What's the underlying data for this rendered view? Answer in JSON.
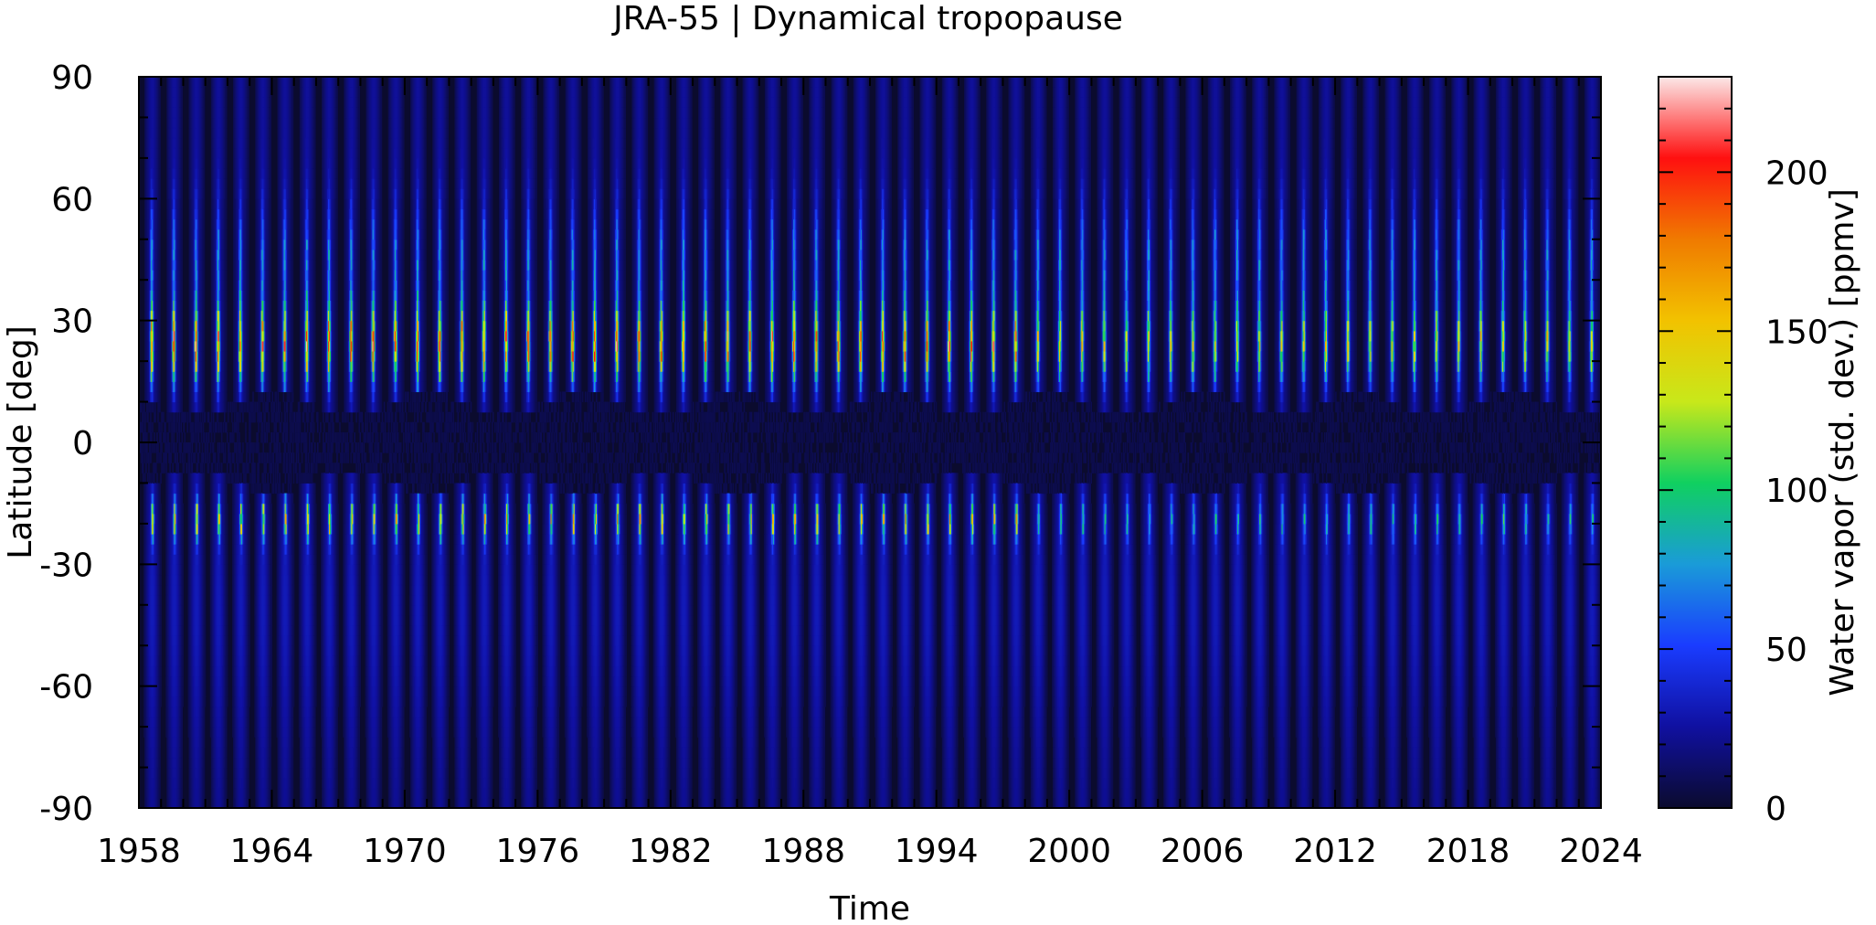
{
  "chart_data": {
    "type": "heatmap",
    "title": "JRA-55 | Dynamical tropopause",
    "xlabel": "Time",
    "ylabel": "Latitude [deg]",
    "colorbar_label": "Water vapor (std. dev.) [ppmv]",
    "xlim": [
      1958,
      2024
    ],
    "ylim": [
      -90,
      90
    ],
    "clim": [
      0,
      230
    ],
    "x_ticks": [
      1958,
      1964,
      1970,
      1976,
      1982,
      1988,
      1994,
      2000,
      2006,
      2012,
      2018,
      2024
    ],
    "y_ticks": [
      -90,
      -60,
      -30,
      0,
      30,
      60,
      90
    ],
    "colorbar_ticks": [
      0,
      50,
      100,
      150,
      200
    ],
    "colormap": [
      "#0b0b2e",
      "#1010a0",
      "#1a3cff",
      "#1a9bd8",
      "#10d060",
      "#c8e81a",
      "#f2c200",
      "#f07a00",
      "#ff1010",
      "#fce8e8"
    ],
    "seasonal_cycle": "annual maxima in boreal summer; NH peak ~140-190 ppmv near 15-30N, SH peak ~100-130 ppmv near 15-25S, minimum < 10 ppmv near the equator"
  }
}
